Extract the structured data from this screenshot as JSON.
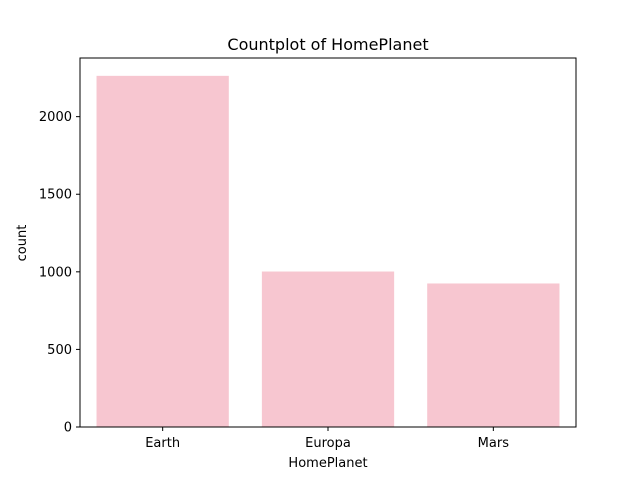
{
  "chart_data": {
    "type": "bar",
    "title": "Countplot of HomePlanet",
    "xlabel": "HomePlanet",
    "ylabel": "count",
    "categories": [
      "Earth",
      "Europa",
      "Mars"
    ],
    "values": [
      2263,
      1002,
      925
    ],
    "ylim": [
      0,
      2378
    ],
    "yticks": [
      0,
      500,
      1000,
      1500,
      2000
    ],
    "grid": false,
    "bar_color": "#f7c6d0",
    "axis_color": "#000000"
  }
}
